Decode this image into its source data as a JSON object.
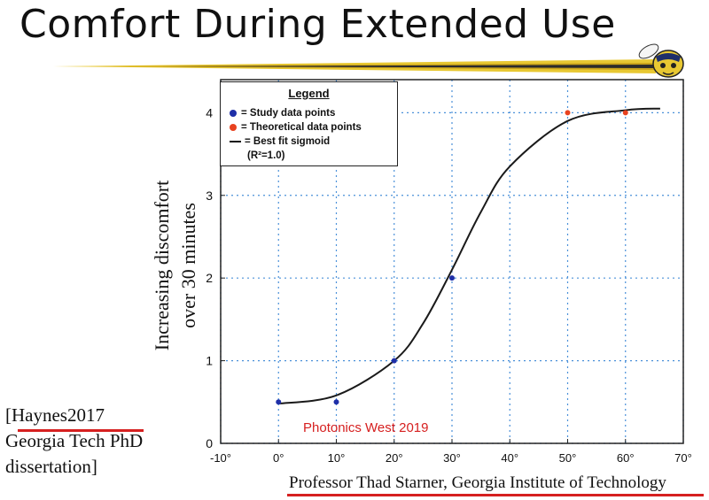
{
  "slide": {
    "title": "Comfort During Extended Use",
    "citation_lines": [
      "[Haynes2017",
      "Georgia Tech PhD",
      "dissertation]"
    ],
    "footer": "Professor Thad Starner, Georgia Institute of Technology",
    "watermark": "Photonics West 2019"
  },
  "colors": {
    "study": "#1f2fa8",
    "theoretical": "#e8421f",
    "curve": "#1a1a1a",
    "underline": "#d62020",
    "swoosh_gold": "#e8c832"
  },
  "icons": [
    "yellow-jacket-mascot-icon"
  ],
  "chart_data": {
    "type": "scatter",
    "title": "",
    "xlabel": "",
    "ylabel": "Increasing discomfort over 30 minutes",
    "ylabel_lines": [
      "Increasing discomfort",
      "over 30 minutes"
    ],
    "xlim": [
      -10,
      70
    ],
    "ylim": [
      0,
      4.4
    ],
    "x_ticks": [
      -10,
      0,
      10,
      20,
      30,
      40,
      50,
      60,
      70
    ],
    "x_tick_labels": [
      "-10°",
      "0°",
      "10°",
      "20°",
      "30°",
      "40°",
      "50°",
      "60°",
      "70°"
    ],
    "y_ticks": [
      0,
      1,
      2,
      3,
      4
    ],
    "y_tick_labels": [
      "0",
      "1",
      "2",
      "3",
      "4"
    ],
    "grid": true,
    "legend": {
      "title": "Legend",
      "position": "top-left",
      "entries": [
        "= Study data points",
        "= Theoretical data points",
        "= Best fit sigmoid",
        "(R²=1.0)"
      ]
    },
    "series": [
      {
        "name": "Study data points",
        "kind": "scatter",
        "x": [
          0,
          10,
          20,
          30
        ],
        "y": [
          0.5,
          0.5,
          1.0,
          2.0
        ]
      },
      {
        "name": "Theoretical data points",
        "kind": "scatter",
        "x": [
          50,
          60
        ],
        "y": [
          4.0,
          4.0
        ]
      },
      {
        "name": "Best fit sigmoid",
        "kind": "line",
        "x": [
          0,
          10,
          20,
          25,
          30,
          35,
          40,
          50,
          60,
          66
        ],
        "y": [
          0.48,
          0.58,
          1.0,
          1.45,
          2.1,
          2.8,
          3.35,
          3.9,
          4.03,
          4.05
        ]
      }
    ]
  }
}
